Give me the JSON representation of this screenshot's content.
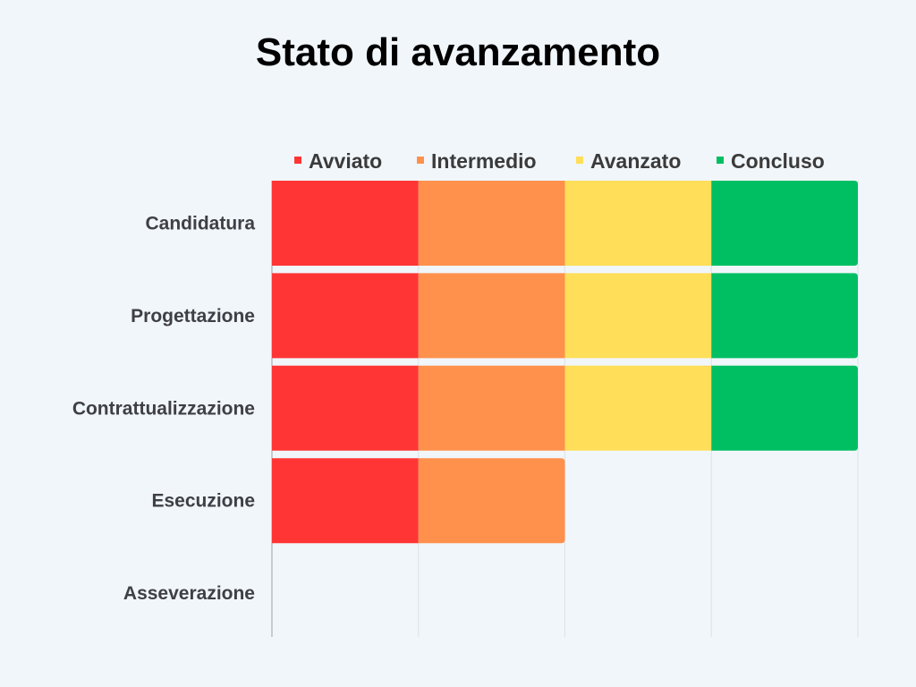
{
  "chart_data": {
    "type": "bar",
    "orientation": "horizontal",
    "stacked": true,
    "title": "Stato di avanzamento",
    "categories": [
      "Candidatura",
      "Progettazione",
      "Contrattualizzazione",
      "Esecuzione",
      "Asseverazione"
    ],
    "series": [
      {
        "name": "Avviato",
        "color": "#ff3535",
        "values": [
          1,
          1,
          1,
          1,
          0
        ]
      },
      {
        "name": "Intermedio",
        "color": "#ff914d",
        "values": [
          1,
          1,
          1,
          1,
          0
        ]
      },
      {
        "name": "Avanzato",
        "color": "#ffde59",
        "values": [
          1,
          1,
          1,
          0,
          0
        ]
      },
      {
        "name": "Concluso",
        "color": "#00bf63",
        "values": [
          1,
          1,
          1,
          0,
          0
        ]
      }
    ],
    "xlim": [
      0,
      4
    ],
    "grid": true,
    "legend_position": "top",
    "xlabel": "",
    "ylabel": ""
  }
}
